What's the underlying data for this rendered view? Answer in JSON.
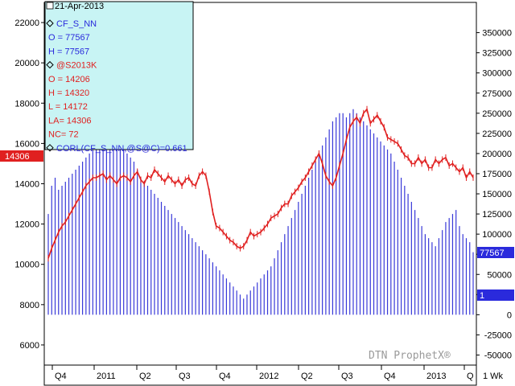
{
  "chart_data": {
    "type": "line",
    "date": "21-Apr-2013",
    "watermark": "DTN ProphetX®",
    "interval_label": "1 Wk",
    "legend": {
      "items": [
        {
          "text": "CF_S_NN",
          "color": "#2a2adc",
          "diamond": true
        },
        {
          "text": "O = 77567",
          "color": "#2a2adc"
        },
        {
          "text": "H = 77567",
          "color": "#2a2adc"
        },
        {
          "text": "@S2013K",
          "color": "#e02020",
          "diamond": true
        },
        {
          "text": "O = 14206",
          "color": "#e02020"
        },
        {
          "text": "H = 14320",
          "color": "#e02020"
        },
        {
          "text": "L = 14172",
          "color": "#e02020"
        },
        {
          "text": "LA= 14306",
          "color": "#e02020"
        },
        {
          "text": "NC= 72",
          "color": "#e02020"
        },
        {
          "text": "CORL(CF_S_NN,@S@C)=0.661",
          "color": "#2a2adc",
          "diamond": true
        }
      ]
    },
    "left_axis": {
      "ticks": [
        "22000",
        "20000",
        "18000",
        "16000",
        "14000",
        "12000",
        "10000",
        "8000",
        "6000"
      ],
      "min": 5000,
      "max": 23000
    },
    "right_axis": {
      "ticks": [
        "350000",
        "325000",
        "300000",
        "275000",
        "250000",
        "225000",
        "200000",
        "175000",
        "150000",
        "125000",
        "100000",
        "75000",
        "50000",
        "25000",
        "0",
        "-25000",
        "-50000"
      ],
      "min": -62500,
      "max": 387500
    },
    "x_labels": [
      "Q4",
      "2011",
      "Q2",
      "Q3",
      "Q4",
      "2012",
      "Q2",
      "Q3",
      "Q4",
      "2013",
      "Q"
    ],
    "price_badge": {
      "text": "14306",
      "color": "#e02020"
    },
    "volume_badges": [
      {
        "text": "77567",
        "color": "#2a2adc"
      },
      {
        "text": "1",
        "color": "#2a2adc"
      }
    ],
    "series": [
      {
        "name": "CF_S_NN",
        "axis": "right",
        "color": "#3838d8",
        "baseline": 1,
        "values": [
          125000,
          160000,
          170000,
          155000,
          160000,
          165000,
          170000,
          175000,
          180000,
          185000,
          190000,
          195000,
          200000,
          205000,
          210000,
          215000,
          210000,
          215000,
          220000,
          220000,
          215000,
          210000,
          205000,
          200000,
          195000,
          190000,
          180000,
          170000,
          165000,
          160000,
          155000,
          150000,
          145000,
          140000,
          135000,
          130000,
          125000,
          120000,
          115000,
          110000,
          105000,
          100000,
          95000,
          90000,
          85000,
          80000,
          75000,
          70000,
          65000,
          60000,
          55000,
          50000,
          45000,
          40000,
          35000,
          30000,
          25000,
          20000,
          25000,
          30000,
          35000,
          40000,
          45000,
          50000,
          55000,
          60000,
          70000,
          80000,
          90000,
          100000,
          110000,
          120000,
          130000,
          140000,
          150000,
          160000,
          170000,
          180000,
          190000,
          200000,
          210000,
          220000,
          230000,
          240000,
          245000,
          250000,
          250000,
          245000,
          250000,
          255000,
          250000,
          245000,
          240000,
          235000,
          230000,
          225000,
          220000,
          215000,
          210000,
          205000,
          200000,
          190000,
          180000,
          170000,
          160000,
          150000,
          140000,
          130000,
          120000,
          110000,
          100000,
          95000,
          90000,
          85000,
          95000,
          105000,
          115000,
          120000,
          125000,
          130000,
          110000,
          100000,
          95000,
          90000,
          77567
        ]
      },
      {
        "name": "@S2013K",
        "axis": "left",
        "color": "#e02020",
        "values": [
          10300,
          10800,
          11200,
          11600,
          11900,
          12100,
          12400,
          12700,
          13000,
          13300,
          13600,
          13900,
          14100,
          14300,
          14300,
          14400,
          14500,
          14200,
          14400,
          14200,
          14000,
          14300,
          14400,
          14300,
          14100,
          14400,
          14600,
          14200,
          14000,
          14400,
          14300,
          14700,
          14500,
          14300,
          14100,
          14400,
          14200,
          14000,
          14200,
          13900,
          14200,
          14300,
          14000,
          13900,
          14400,
          14600,
          14400,
          13600,
          12600,
          11900,
          11800,
          11600,
          11400,
          11200,
          11100,
          10900,
          10800,
          10900,
          11200,
          11600,
          11400,
          11500,
          11600,
          11800,
          12000,
          12300,
          12400,
          12500,
          12800,
          13000,
          13000,
          13400,
          13600,
          13800,
          14100,
          14300,
          14600,
          14900,
          15200,
          15500,
          15000,
          14400,
          14100,
          13900,
          14300,
          14900,
          15500,
          16200,
          16800,
          17100,
          17300,
          17000,
          17500,
          17700,
          17000,
          17200,
          17400,
          17100,
          16800,
          16300,
          16200,
          16100,
          16000,
          15700,
          15400,
          15300,
          15000,
          15000,
          15300,
          15000,
          15200,
          14800,
          14800,
          15200,
          15000,
          15200,
          15300,
          14900,
          15000,
          14800,
          14600,
          14800,
          14300,
          14600,
          14306
        ]
      }
    ]
  }
}
